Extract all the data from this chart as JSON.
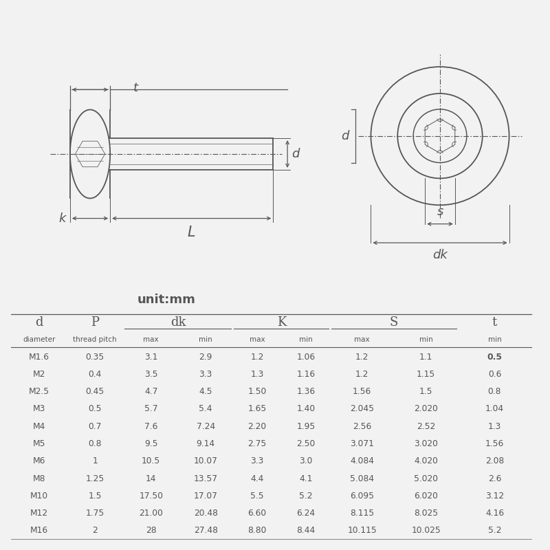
{
  "bg_color": "#f2f2f2",
  "line_color": "#555555",
  "unit_text": "unit:mm",
  "subheaders": [
    "diameter",
    "thread pitch",
    "max",
    "min",
    "max",
    "min",
    "max",
    "min",
    "min"
  ],
  "rows": [
    [
      "M1.6",
      "0.35",
      "3.1",
      "2.9",
      "1.2",
      "1.06",
      "1.2",
      "1.1",
      "0.5"
    ],
    [
      "M2",
      "0.4",
      "3.5",
      "3.3",
      "1.3",
      "1.16",
      "1.2",
      "1.15",
      "0.6"
    ],
    [
      "M2.5",
      "0.45",
      "4.7",
      "4.5",
      "1.50",
      "1.36",
      "1.56",
      "1.5",
      "0.8"
    ],
    [
      "M3",
      "0.5",
      "5.7",
      "5.4",
      "1.65",
      "1.40",
      "2.045",
      "2.020",
      "1.04"
    ],
    [
      "M4",
      "0.7",
      "7.6",
      "7.24",
      "2.20",
      "1.95",
      "2.56",
      "2.52",
      "1.3"
    ],
    [
      "M5",
      "0.8",
      "9.5",
      "9.14",
      "2.75",
      "2.50",
      "3.071",
      "3.020",
      "1.56"
    ],
    [
      "M6",
      "1",
      "10.5",
      "10.07",
      "3.3",
      "3.0",
      "4.084",
      "4.020",
      "2.08"
    ],
    [
      "M8",
      "1.25",
      "14",
      "13.57",
      "4.4",
      "4.1",
      "5.084",
      "5.020",
      "2.6"
    ],
    [
      "M10",
      "1.5",
      "17.50",
      "17.07",
      "5.5",
      "5.2",
      "6.095",
      "6.020",
      "3.12"
    ],
    [
      "M12",
      "1.75",
      "21.00",
      "20.48",
      "6.60",
      "6.24",
      "8.115",
      "8.025",
      "4.16"
    ],
    [
      "M16",
      "2",
      "28",
      "27.48",
      "8.80",
      "8.44",
      "10.115",
      "10.025",
      "5.2"
    ]
  ]
}
